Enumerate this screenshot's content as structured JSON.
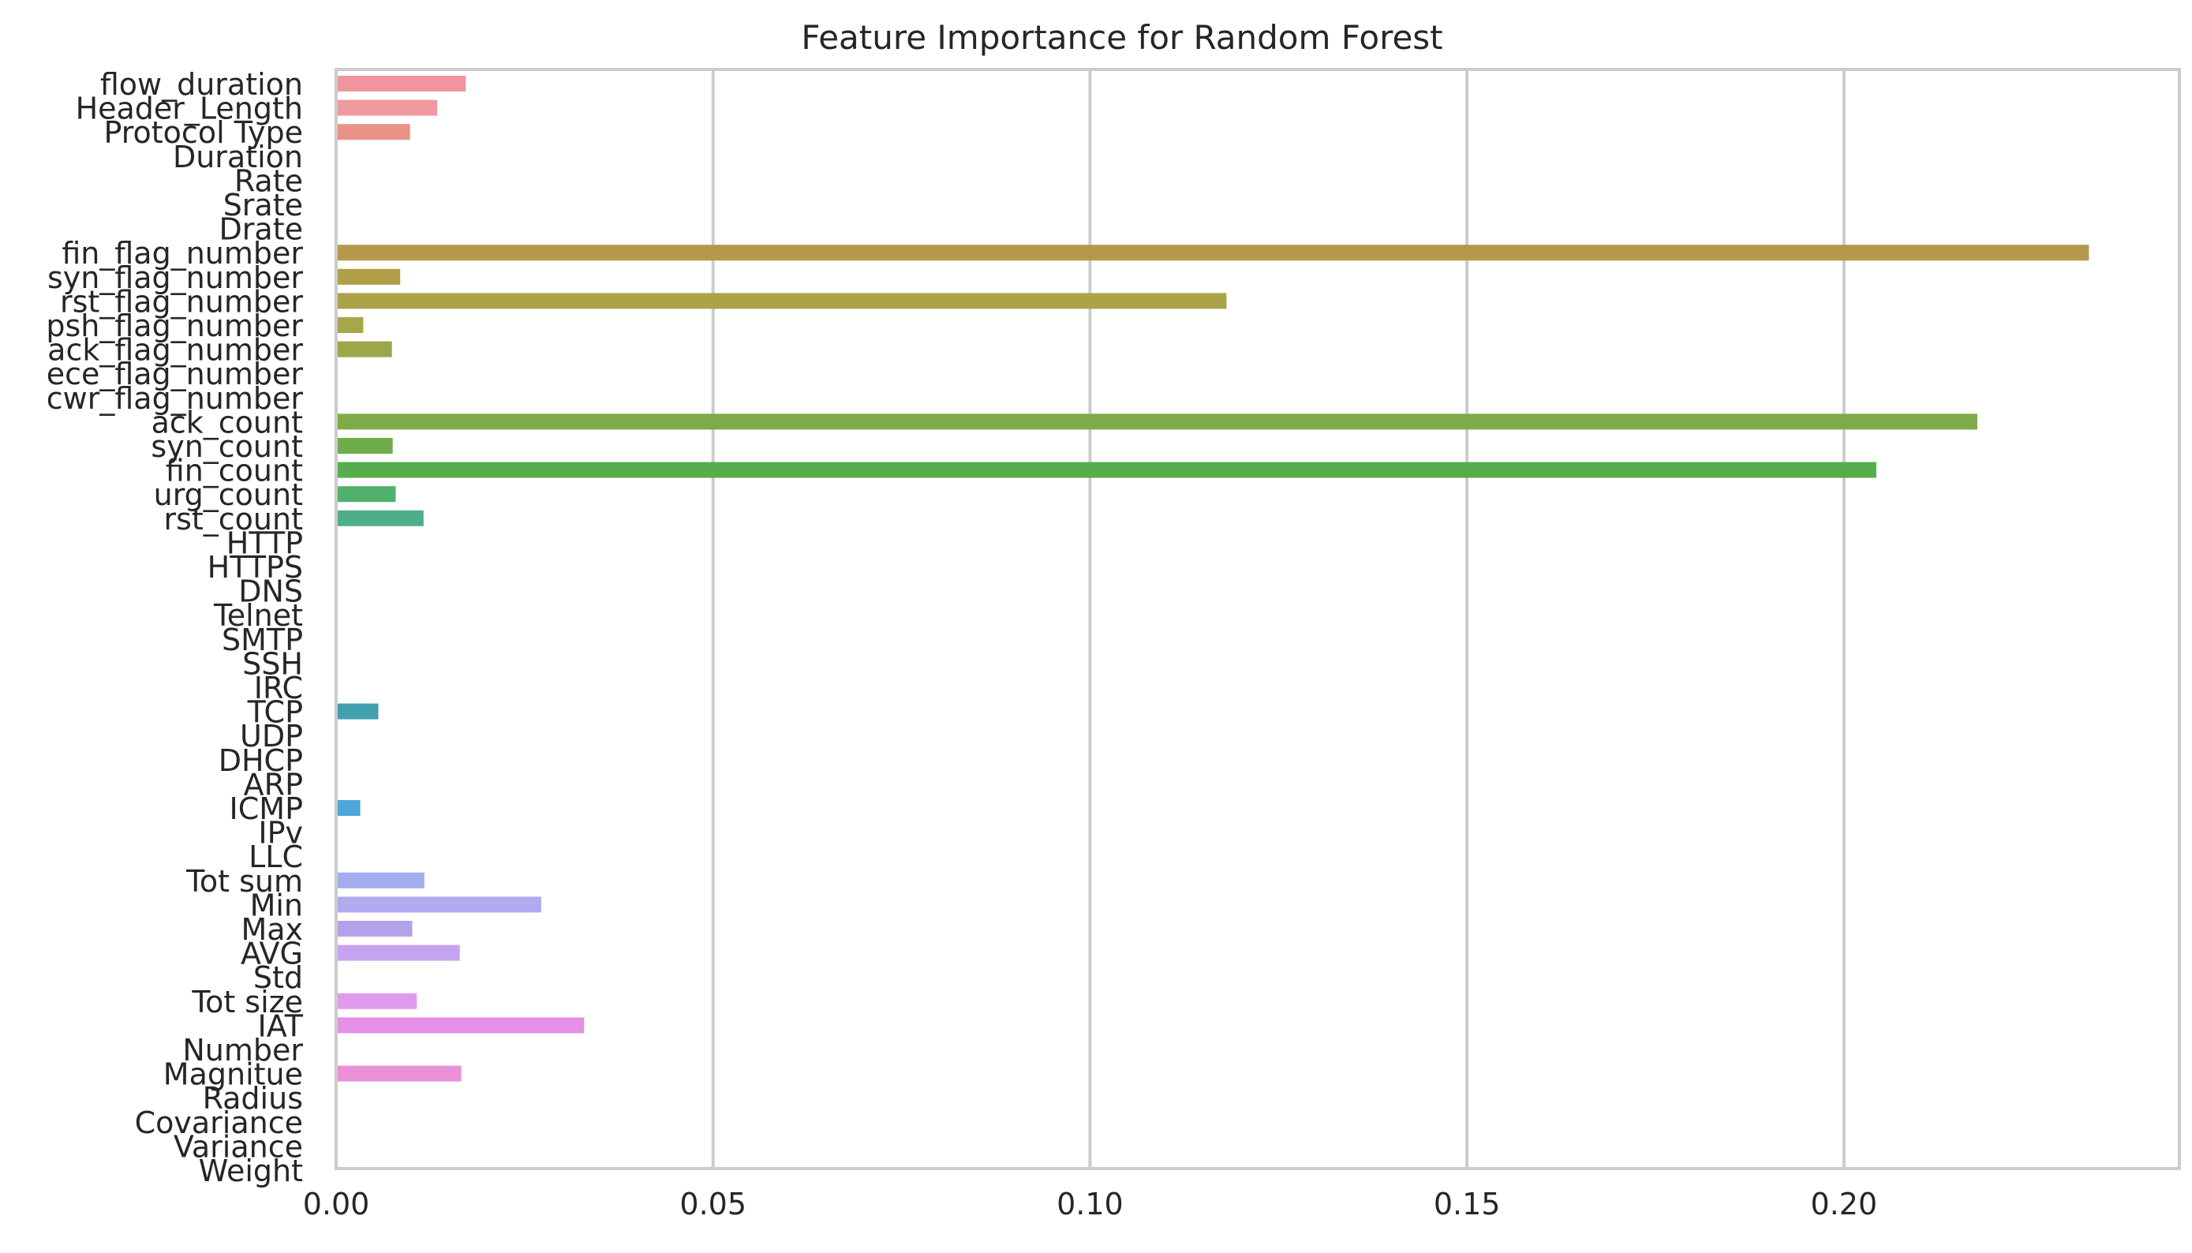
{
  "chart_data": {
    "type": "bar",
    "orientation": "horizontal",
    "title": "Feature Importance for Random Forest",
    "xlabel": "",
    "ylabel": "",
    "xlim": [
      0,
      0.2445
    ],
    "xticks": [
      {
        "value": 0.0,
        "label": "0.00"
      },
      {
        "value": 0.05,
        "label": "0.05"
      },
      {
        "value": 0.1,
        "label": "0.10"
      },
      {
        "value": 0.15,
        "label": "0.15"
      },
      {
        "value": 0.2,
        "label": "0.20"
      }
    ],
    "grid": true,
    "categories": [
      "flow_duration",
      "Header_Length",
      "Protocol Type",
      "Duration",
      "Rate",
      "Srate",
      "Drate",
      "fin_flag_number",
      "syn_flag_number",
      "rst_flag_number",
      "psh_flag_number",
      "ack_flag_number",
      "ece_flag_number",
      "cwr_flag_number",
      "ack_count",
      "syn_count",
      "fin_count",
      "urg_count",
      "rst_count",
      "HTTP",
      "HTTPS",
      "DNS",
      "Telnet",
      "SMTP",
      "SSH",
      "IRC",
      "TCP",
      "UDP",
      "DHCP",
      "ARP",
      "ICMP",
      "IPv",
      "LLC",
      "Tot sum",
      "Min",
      "Max",
      "AVG",
      "Std",
      "Tot size",
      "IAT",
      "Number",
      "Magnitue",
      "Radius",
      "Covariance",
      "Variance",
      "Weight"
    ],
    "values": [
      0.0172,
      0.0134,
      0.0098,
      0.0,
      0.0,
      0.0,
      0.0,
      0.2325,
      0.0085,
      0.1181,
      0.0036,
      0.0074,
      0.0,
      0.0,
      0.2177,
      0.0075,
      0.2043,
      0.0079,
      0.0116,
      0.0,
      0.0,
      0.0,
      0.0,
      0.0,
      0.0,
      0.0,
      0.0056,
      0.0,
      0.0,
      0.0,
      0.0032,
      0.0,
      0.0,
      0.0117,
      0.0272,
      0.0101,
      0.0164,
      0.0,
      0.0107,
      0.0329,
      0.0,
      0.0166,
      0.0,
      0.0,
      0.0,
      0.0
    ],
    "colors": [
      "#f0959d",
      "#ef999e",
      "#e99287",
      "#e0997c",
      "#da9f71",
      "#d2a467",
      "#c9a95e",
      "#b5984a",
      "#b09e49",
      "#aba348",
      "#a6a748",
      "#9ca74a",
      "#91a84f",
      "#85ac55",
      "#7eab48",
      "#6dad4a",
      "#56ad4b",
      "#50b06c",
      "#4fae88",
      "#4cad9c",
      "#49aba8",
      "#48a9b3",
      "#45a7bf",
      "#42a3c9",
      "#48a0d1",
      "#56a0dd",
      "#419fb0",
      "#6fa5e6",
      "#86a8ea",
      "#98a9ed",
      "#4fa6d9",
      "#b3aaef",
      "#bfa9ef",
      "#a3adf0",
      "#b0aaef",
      "#b3a2ea",
      "#c5a3ee",
      "#d4a0ee",
      "#e09cec",
      "#e68fe6",
      "#ea94e2",
      "#eb90d6",
      "#ec94cb",
      "#ee97c0",
      "#ef98b5",
      "#f09aab"
    ]
  }
}
